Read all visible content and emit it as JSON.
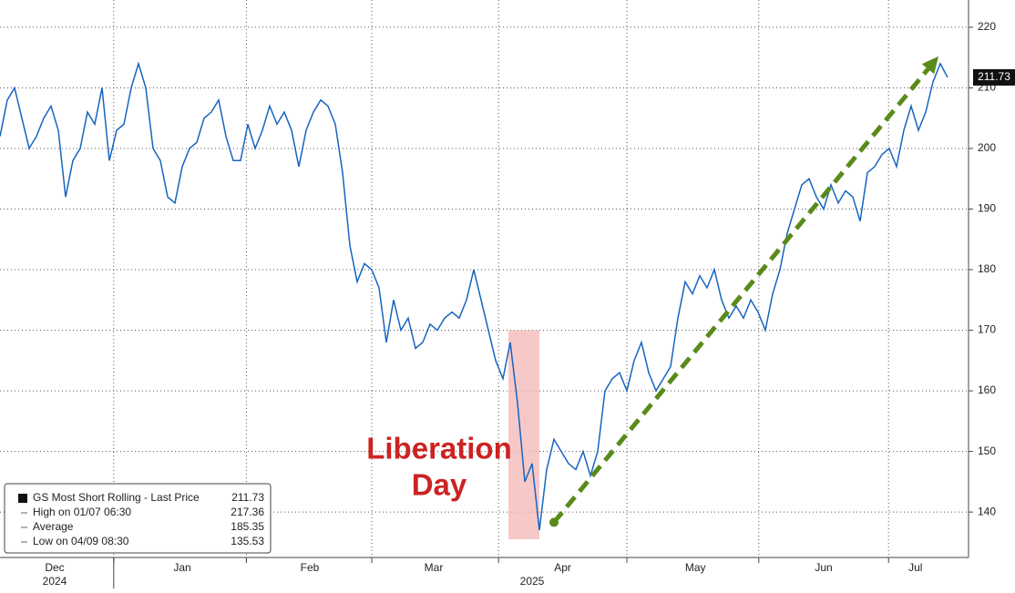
{
  "chart_data": {
    "type": "line",
    "series": [
      {
        "name": "GS Most Short Rolling - Last Price",
        "color": "#1565c0",
        "values": [
          202,
          208,
          210,
          205,
          200,
          202,
          205,
          207,
          203,
          192,
          198,
          200,
          206,
          204,
          210,
          198,
          203,
          204,
          210,
          214,
          210,
          200,
          198,
          192,
          191,
          197,
          200,
          201,
          205,
          206,
          208,
          202,
          198,
          198,
          204,
          200,
          203,
          207,
          204,
          206,
          203,
          197,
          203,
          206,
          208,
          207,
          204,
          196,
          184,
          178,
          181,
          180,
          177,
          168,
          175,
          170,
          172,
          167,
          168,
          171,
          170,
          172,
          173,
          172,
          175,
          180,
          175,
          170,
          165,
          162,
          168,
          158,
          145,
          148,
          137,
          147,
          152,
          150,
          148,
          147,
          150,
          146,
          150,
          160,
          162,
          163,
          160,
          165,
          168,
          163,
          160,
          162,
          164,
          172,
          178,
          176,
          179,
          177,
          180,
          175,
          172,
          174,
          172,
          175,
          173,
          170,
          176,
          180,
          186,
          190,
          194,
          195,
          192,
          190,
          194,
          191,
          193,
          192,
          188,
          196,
          197,
          199,
          200,
          197,
          203,
          207,
          203,
          206,
          211,
          214,
          211.73
        ]
      }
    ],
    "xlim": [
      0,
      130
    ],
    "ylim": [
      132.5,
      224.5
    ],
    "yticks": [
      140,
      150,
      160,
      170,
      180,
      190,
      200,
      210,
      220
    ],
    "xgrid": [
      15.6,
      33.8,
      51,
      68.4,
      86,
      104.1,
      121.9
    ],
    "xticks": [
      {
        "value": 7.5,
        "label": "Dec"
      },
      {
        "value": 25,
        "label": "Jan"
      },
      {
        "value": 42.5,
        "label": "Feb"
      },
      {
        "value": 59.5,
        "label": "Mar"
      },
      {
        "value": 77.2,
        "label": "Apr"
      },
      {
        "value": 95.4,
        "label": "May"
      },
      {
        "value": 113,
        "label": "Jun"
      },
      {
        "value": 125.6,
        "label": "Jul"
      }
    ],
    "years": [
      {
        "value": 7.5,
        "label": "2024"
      },
      {
        "value": 73,
        "label": "2025"
      }
    ],
    "grid": true,
    "last_price": {
      "value": 211.73,
      "label": "211.73"
    },
    "highlight": {
      "x": [
        69.75,
        74
      ],
      "y": [
        135.5,
        170
      ],
      "color": "#f4b6b6"
    },
    "arrow": {
      "x": [
        76,
        128.75
      ],
      "y": [
        138.3,
        215.2
      ],
      "color": "#5a8a1a"
    },
    "annotation": {
      "lines": [
        "Liberation",
        "Day"
      ],
      "color": "#cc2222"
    },
    "legend": {
      "rows": [
        {
          "label": "GS Most Short Rolling - Last Price",
          "value": "211.73"
        },
        {
          "label": "High on 01/07 06:30",
          "value": "217.36"
        },
        {
          "label": "Average",
          "value": "185.35"
        },
        {
          "label": "Low on 04/09 08:30",
          "value": "135.53"
        }
      ]
    }
  }
}
